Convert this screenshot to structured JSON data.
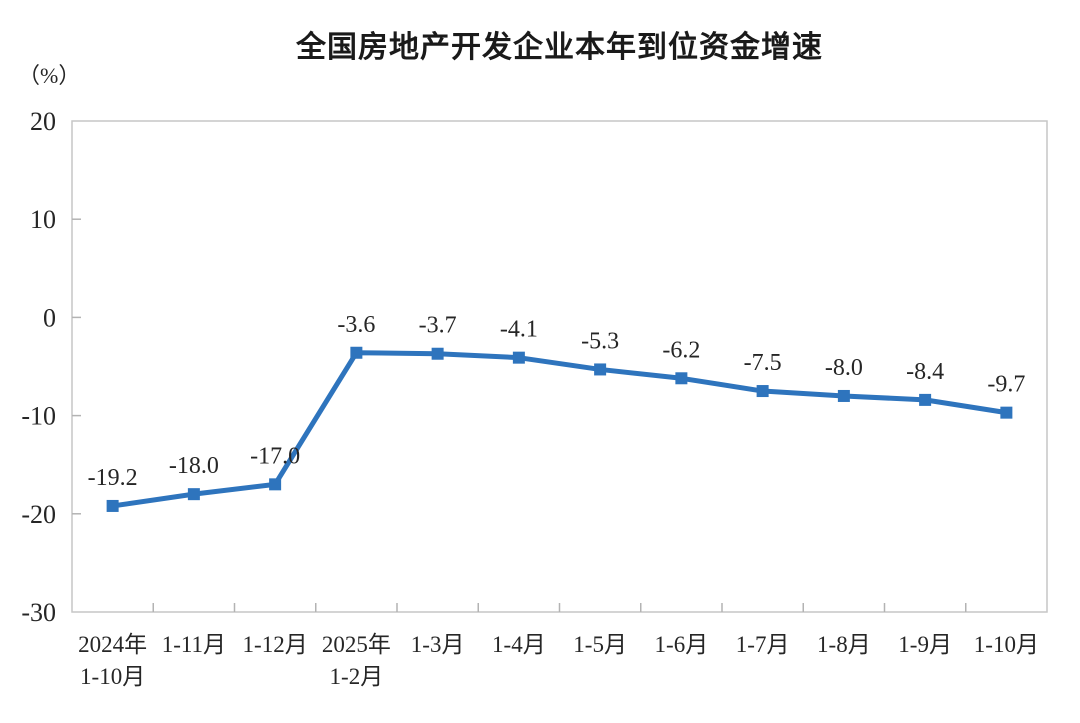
{
  "chart_data": {
    "type": "line",
    "title": "全国房地产开发企业本年到位资金增速",
    "unit_label": "（%）",
    "categories": [
      [
        "2024年",
        "1-10月"
      ],
      [
        "1-11月"
      ],
      [
        "1-12月"
      ],
      [
        "2025年",
        "1-2月"
      ],
      [
        "1-3月"
      ],
      [
        "1-4月"
      ],
      [
        "1-5月"
      ],
      [
        "1-6月"
      ],
      [
        "1-7月"
      ],
      [
        "1-8月"
      ],
      [
        "1-9月"
      ],
      [
        "1-10月"
      ]
    ],
    "series": [
      {
        "name": "本年到位资金增速",
        "values": [
          -19.2,
          -18.0,
          -17.0,
          -3.6,
          -3.7,
          -4.1,
          -5.3,
          -6.2,
          -7.5,
          -8.0,
          -8.4,
          -9.7
        ],
        "data_labels": [
          "-19.2",
          "-18.0",
          "-17.0",
          "-3.6",
          "-3.7",
          "-4.1",
          "-5.3",
          "-6.2",
          "-7.5",
          "-8.0",
          "-8.4",
          "-9.7"
        ]
      }
    ],
    "xlabel": "",
    "ylabel": "（%）",
    "ylim": [
      -30,
      20
    ],
    "y_ticks": [
      20,
      10,
      0,
      -10,
      -20,
      -30
    ],
    "grid": false,
    "legend_position": "none",
    "marker": "square",
    "colors": {
      "line": "#2e74bd",
      "marker": "#2e74bd",
      "frame": "#c6c6c6",
      "tick": "#b3b3b3",
      "text": "#262626",
      "title": "#1a1a1a",
      "background": "#ffffff"
    }
  }
}
